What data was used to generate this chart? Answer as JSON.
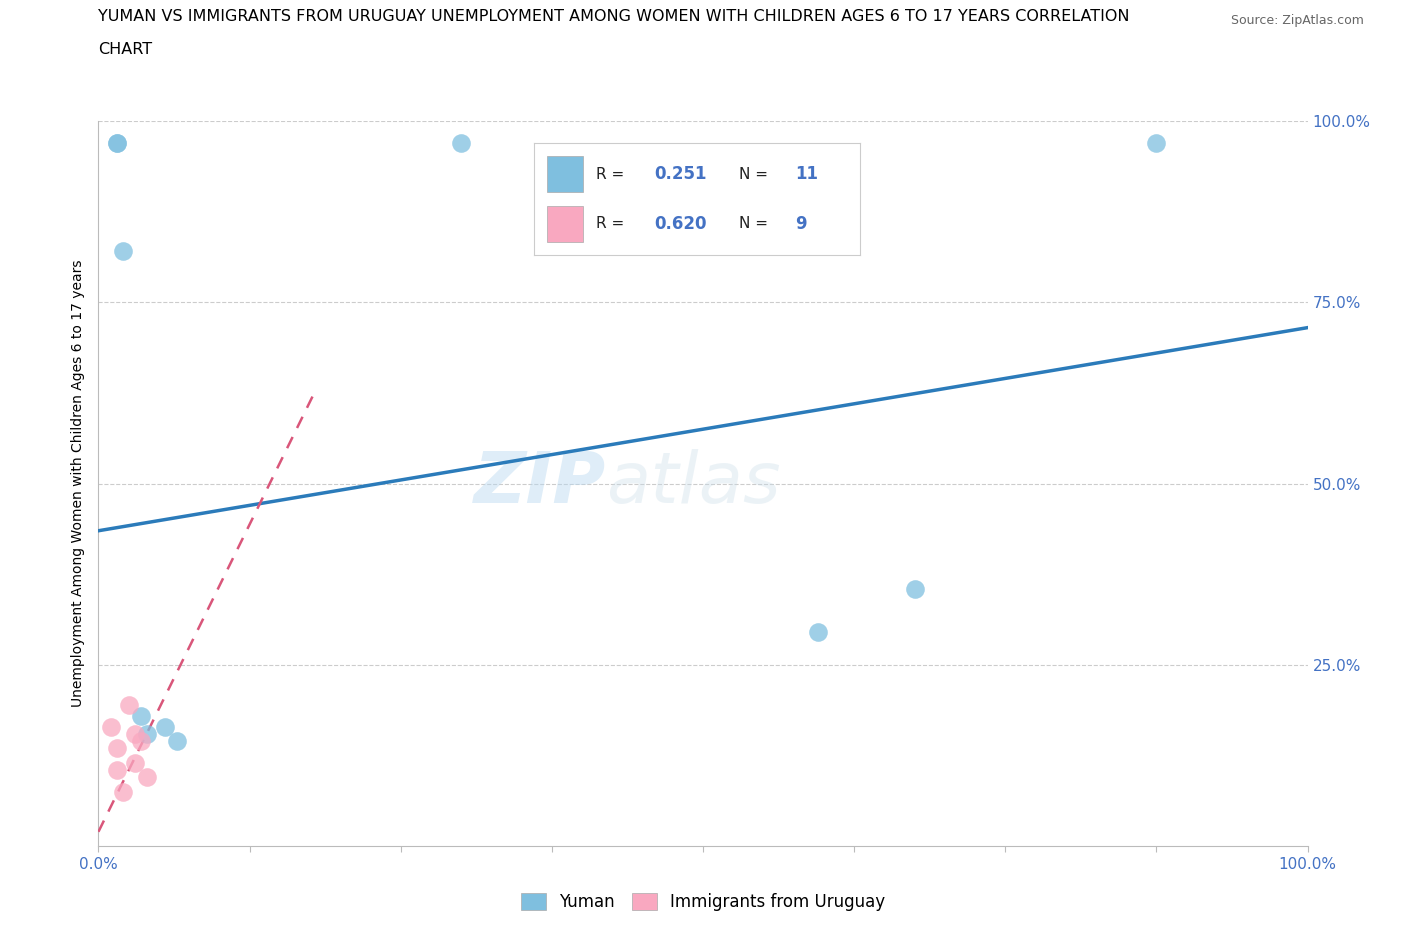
{
  "title_line1": "YUMAN VS IMMIGRANTS FROM URUGUAY UNEMPLOYMENT AMONG WOMEN WITH CHILDREN AGES 6 TO 17 YEARS CORRELATION",
  "title_line2": "CHART",
  "source": "Source: ZipAtlas.com",
  "ylabel": "Unemployment Among Women with Children Ages 6 to 17 years",
  "xlim": [
    0.0,
    1.0
  ],
  "ylim": [
    0.0,
    1.0
  ],
  "xtick_vals": [
    0.0,
    0.125,
    0.25,
    0.375,
    0.5,
    0.625,
    0.75,
    0.875,
    1.0
  ],
  "xtick_show_labels": [
    0.0,
    1.0
  ],
  "ytick_vals": [
    0.25,
    0.5,
    0.75,
    1.0
  ],
  "ytick_labels": [
    "25.0%",
    "50.0%",
    "75.0%",
    "100.0%"
  ],
  "blue_scatter_x": [
    0.015,
    0.02,
    0.035,
    0.04,
    0.055,
    0.065,
    0.3,
    0.595,
    0.675,
    0.875,
    0.015
  ],
  "blue_scatter_y": [
    0.97,
    0.82,
    0.18,
    0.155,
    0.165,
    0.145,
    0.97,
    0.295,
    0.355,
    0.97,
    0.97
  ],
  "pink_scatter_x": [
    0.01,
    0.015,
    0.015,
    0.02,
    0.025,
    0.03,
    0.03,
    0.035,
    0.04
  ],
  "pink_scatter_y": [
    0.165,
    0.135,
    0.105,
    0.075,
    0.195,
    0.155,
    0.115,
    0.145,
    0.095
  ],
  "blue_line_x": [
    0.0,
    1.0
  ],
  "blue_line_y": [
    0.435,
    0.715
  ],
  "pink_line_x": [
    0.0,
    0.18
  ],
  "pink_line_y": [
    0.02,
    0.63
  ],
  "blue_color": "#7fbfdf",
  "pink_color": "#f9a8c0",
  "blue_line_color": "#2b7bba",
  "pink_line_color": "#d9567a",
  "watermark_zip": "ZIP",
  "watermark_atlas": "atlas",
  "legend_blue_r": "0.251",
  "legend_blue_n": "11",
  "legend_pink_r": "0.620",
  "legend_pink_n": "9",
  "title_fontsize": 11.5,
  "label_fontsize": 10,
  "tick_fontsize": 11,
  "source_fontsize": 9,
  "legend_fontsize": 12,
  "scatter_size": 180
}
